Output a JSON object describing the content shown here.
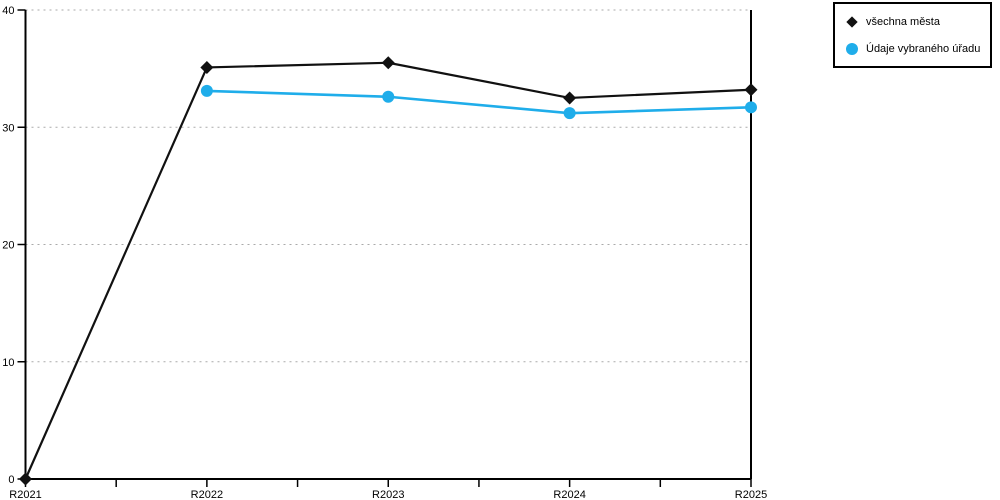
{
  "chart_data": {
    "type": "line",
    "title": "",
    "xlabel": "",
    "ylabel": "",
    "categories": [
      "R2021",
      "R2022",
      "R2023",
      "R2024",
      "R2025"
    ],
    "series": [
      {
        "name": "všechna města",
        "marker": "diamond",
        "color": "#111111",
        "values": [
          0,
          35.1,
          35.5,
          32.5,
          33.2
        ]
      },
      {
        "name": "Údaje vybraného úřadu",
        "marker": "circle",
        "color": "#1fadea",
        "values": [
          null,
          33.1,
          32.6,
          31.2,
          31.7
        ]
      }
    ],
    "ylim": [
      0,
      40
    ],
    "yticks": [
      0,
      10,
      20,
      30,
      40
    ],
    "grid": "dotted-horizontal",
    "grid_color": "#aaaaaa",
    "axis_color": "#000000",
    "legend_position": "top-right"
  }
}
